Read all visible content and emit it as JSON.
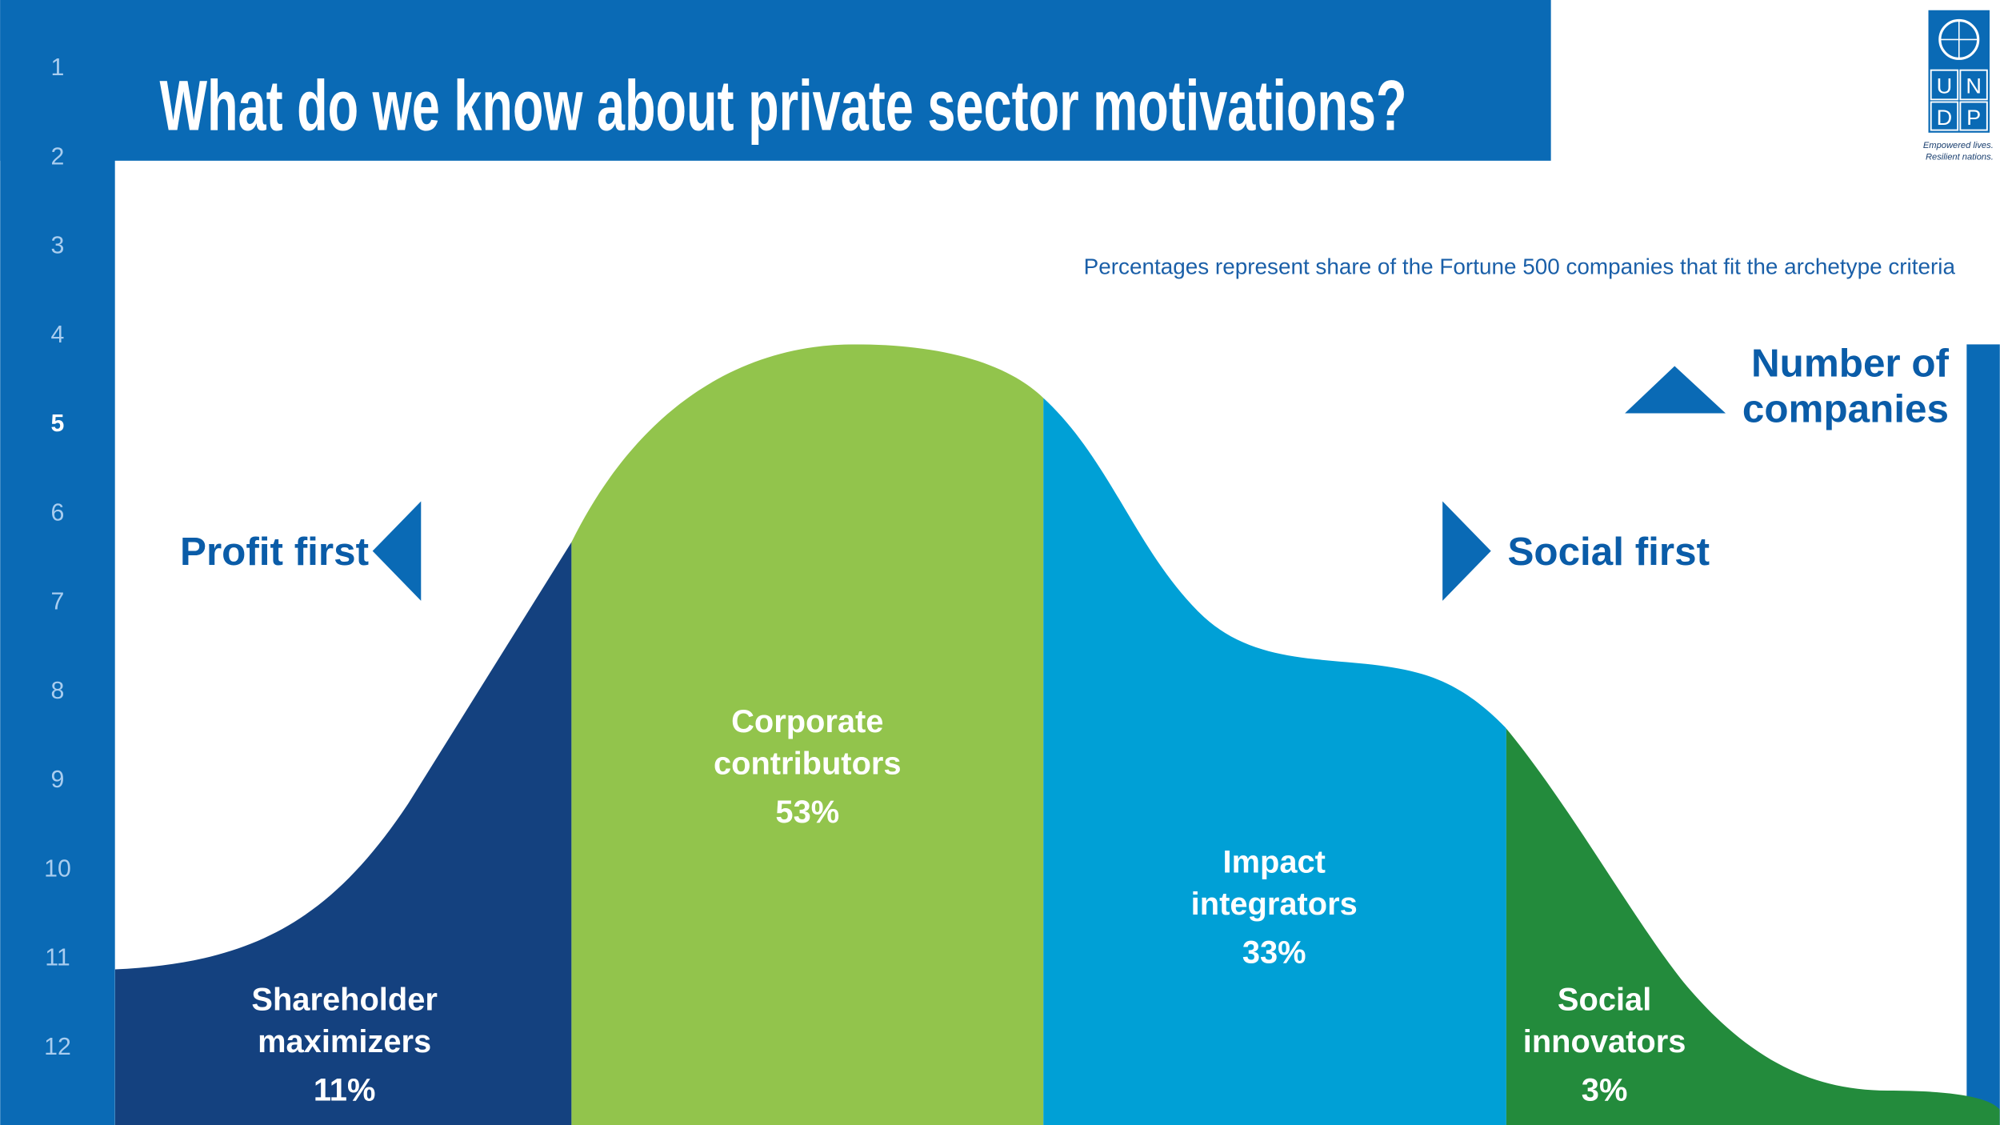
{
  "header": {
    "title": "What do we know about private sector motivations?"
  },
  "row_numbers": [
    "1",
    "2",
    "3",
    "4",
    "5",
    "6",
    "7",
    "8",
    "9",
    "10",
    "11",
    "12"
  ],
  "logo": {
    "letters": [
      "U",
      "N",
      "D",
      "P"
    ],
    "tagline": [
      "Empowered lives.",
      "Resilient nations."
    ]
  },
  "subtitle": "Percentages represent share of the Fortune 500 companies that fit the archetype criteria",
  "axis": {
    "vertical_label": [
      "Number of",
      "companies"
    ],
    "left_label": "Profit first",
    "right_label": "Social first"
  },
  "segments": [
    {
      "label": [
        "Shareholder",
        "maximizers"
      ],
      "share": "11%"
    },
    {
      "label": [
        "Corporate",
        "contributors"
      ],
      "share": "53%"
    },
    {
      "label": [
        "Impact",
        "integrators"
      ],
      "share": "33%"
    },
    {
      "label": [
        "Social",
        "innovators"
      ],
      "share": "3%"
    }
  ]
}
